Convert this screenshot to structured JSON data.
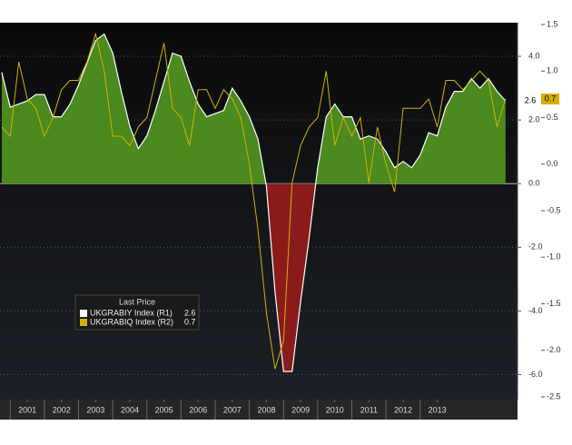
{
  "chart_data": {
    "type": "area-line",
    "legend_title": "Last Price",
    "x": [
      2000.75,
      2001,
      2001.25,
      2001.5,
      2001.75,
      2002,
      2002.25,
      2002.5,
      2002.75,
      2003,
      2003.25,
      2003.5,
      2003.75,
      2004,
      2004.25,
      2004.5,
      2004.75,
      2005,
      2005.25,
      2005.5,
      2005.75,
      2006,
      2006.25,
      2006.5,
      2006.75,
      2007,
      2007.25,
      2007.5,
      2007.75,
      2008,
      2008.25,
      2008.5,
      2008.75,
      2009,
      2009.25,
      2009.5,
      2009.75,
      2010,
      2010.25,
      2010.5,
      2010.75,
      2011,
      2011.25,
      2011.5,
      2011.75,
      2012,
      2012.25,
      2012.5,
      2012.75,
      2013,
      2013.25,
      2013.5,
      2013.75,
      2014,
      2014.25,
      2014.5,
      2014.75,
      2015,
      2015.25,
      2015.5
    ],
    "series": [
      {
        "name": "UKGRABIY Index (R1)",
        "color": "#ffffff",
        "fill_positive": "#4a8a1e",
        "fill_negative": "#8b1a1a",
        "axis": "y",
        "values": [
          3.5,
          2.4,
          2.5,
          2.6,
          2.8,
          2.8,
          2.1,
          2.1,
          2.5,
          3.1,
          3.8,
          4.5,
          4.7,
          4.1,
          2.9,
          1.8,
          1.1,
          1.5,
          2.3,
          3.2,
          4.1,
          4.0,
          3.2,
          2.5,
          2.1,
          2.2,
          2.3,
          3.0,
          2.6,
          2.1,
          1.4,
          -0.1,
          -3.4,
          -5.9,
          -5.9,
          -3.7,
          -1.7,
          0.5,
          2.1,
          2.5,
          2.1,
          2.1,
          1.4,
          1.5,
          1.4,
          1.0,
          0.5,
          0.7,
          0.5,
          0.9,
          1.6,
          1.5,
          2.4,
          2.9,
          2.9,
          3.3,
          3.0,
          3.3,
          2.9,
          2.6
        ]
      },
      {
        "name": "UKGRABIQ Index (R2)",
        "color": "#d4b000",
        "axis": "y2",
        "values": [
          0.4,
          0.3,
          1.1,
          0.7,
          0.6,
          0.3,
          0.5,
          0.8,
          0.9,
          0.9,
          1.1,
          1.4,
          1.0,
          0.3,
          0.3,
          0.2,
          0.4,
          0.5,
          0.9,
          1.3,
          0.6,
          0.5,
          0.2,
          0.8,
          0.8,
          0.6,
          0.8,
          0.7,
          0.5,
          0.0,
          -0.7,
          -1.6,
          -2.2,
          -1.9,
          -0.2,
          0.2,
          0.4,
          0.5,
          1.0,
          0.2,
          0.5,
          0.3,
          0.5,
          -0.2,
          0.4,
          0.0,
          -0.3,
          0.6,
          0.6,
          0.6,
          0.7,
          0.4,
          0.9,
          0.9,
          0.8,
          0.9,
          1.0,
          0.9,
          0.4,
          0.7
        ]
      }
    ],
    "xlim": [
      2000.7,
      2015.85
    ],
    "xticks": [
      {
        "value": 2001.5,
        "label": "2001"
      },
      {
        "value": 2002.5,
        "label": "2002"
      },
      {
        "value": 2003.5,
        "label": "2003"
      },
      {
        "value": 2004.5,
        "label": "2004"
      },
      {
        "value": 2005.5,
        "label": "2005"
      },
      {
        "value": 2006.5,
        "label": "2006"
      },
      {
        "value": 2007.5,
        "label": "2007"
      },
      {
        "value": 2008.5,
        "label": "2008"
      },
      {
        "value": 2009.5,
        "label": "2009"
      },
      {
        "value": 2010.5,
        "label": "2010"
      },
      {
        "value": 2011.5,
        "label": "2011"
      },
      {
        "value": 2012.5,
        "label": "2012"
      },
      {
        "value": 2013.5,
        "label": "2013"
      }
    ],
    "ylim": [
      -6.7,
      5.0
    ],
    "yticks": [
      {
        "value": 4,
        "label": "4.0"
      },
      {
        "value": 2,
        "label": "2.0"
      },
      {
        "value": 0,
        "label": "0.0"
      },
      {
        "value": -2,
        "label": "-2.0"
      },
      {
        "value": -4,
        "label": "-4.0"
      },
      {
        "value": -6,
        "label": "-6.0"
      }
    ],
    "y2lim": [
      -2.5,
      1.5
    ],
    "y2ticks": [
      {
        "value": 1.5,
        "label": "1.5"
      },
      {
        "value": 1,
        "label": "1.0"
      },
      {
        "value": 0.5,
        "label": "0.5"
      },
      {
        "value": 0,
        "label": "0.0"
      },
      {
        "value": -0.5,
        "label": "-0.5"
      },
      {
        "value": -1,
        "label": "-1.0"
      },
      {
        "value": -1.5,
        "label": "-1.5"
      },
      {
        "value": -2,
        "label": "-2.0"
      },
      {
        "value": -2.5,
        "label": "-2.5"
      }
    ],
    "grid": true
  }
}
